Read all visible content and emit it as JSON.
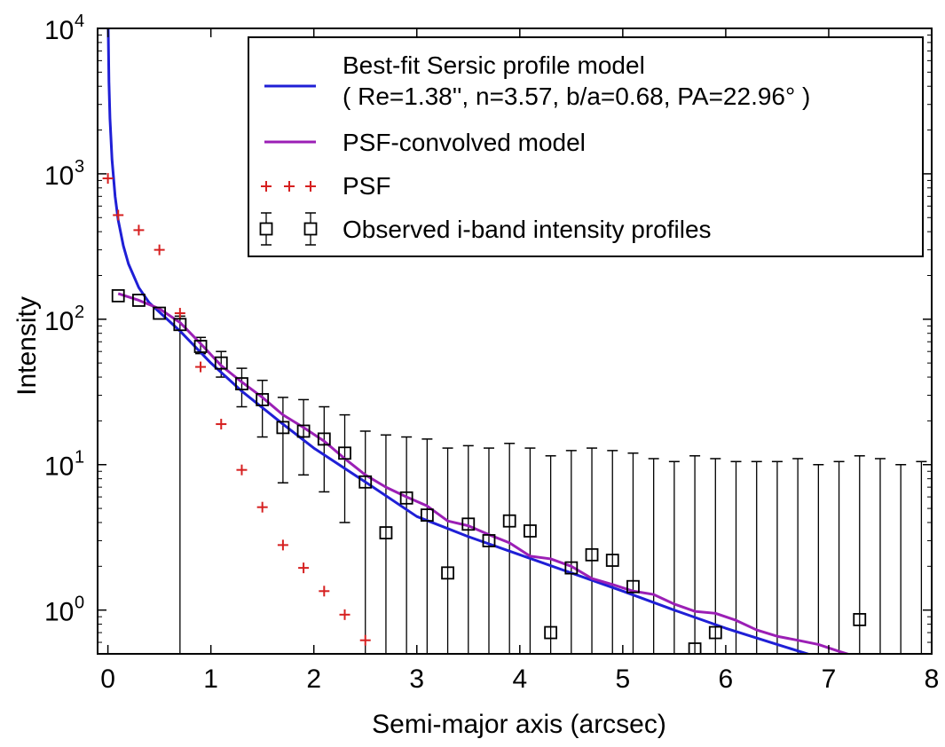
{
  "chart_data": {
    "type": "scatter",
    "title": "",
    "xlabel": "Semi-major axis (arcsec)",
    "ylabel": "Intensity",
    "xlim": [
      -0.1,
      8
    ],
    "ylim": [
      0.5,
      10000
    ],
    "yscale": "log",
    "grid": false,
    "legend_position": "top-right",
    "x_ticks": [
      {
        "value": 0,
        "label": "0"
      },
      {
        "value": 1,
        "label": "1"
      },
      {
        "value": 2,
        "label": "2"
      },
      {
        "value": 3,
        "label": "3"
      },
      {
        "value": 4,
        "label": "4"
      },
      {
        "value": 5,
        "label": "5"
      },
      {
        "value": 6,
        "label": "6"
      },
      {
        "value": 7,
        "label": "7"
      },
      {
        "value": 8,
        "label": "8"
      }
    ],
    "y_ticks": [
      {
        "value": 1,
        "base": "10",
        "exp": "0"
      },
      {
        "value": 10,
        "base": "10",
        "exp": "1"
      },
      {
        "value": 100,
        "base": "10",
        "exp": "2"
      },
      {
        "value": 1000,
        "base": "10",
        "exp": "3"
      },
      {
        "value": 10000,
        "base": "10",
        "exp": "4"
      }
    ],
    "series": [
      {
        "name": "Best-fit Sersic profile model",
        "params_text": "( Re=1.38'', n=3.57, b/a=0.68, PA=22.96° )",
        "kind": "line",
        "color": "#1f1fd6",
        "x": [
          0.003,
          0.01,
          0.02,
          0.04,
          0.07,
          0.1,
          0.15,
          0.2,
          0.3,
          0.4,
          0.5,
          0.7,
          1.0,
          1.3,
          1.7,
          2.0,
          2.5,
          3.0,
          3.5,
          4.0,
          4.5,
          5.0,
          5.5,
          6.0,
          6.5,
          7.0
        ],
        "y": [
          10000,
          4300,
          2400,
          1250,
          700,
          480,
          320,
          240,
          165,
          130,
          112,
          83,
          50,
          32,
          19,
          13,
          7.6,
          4.4,
          3.2,
          2.4,
          1.8,
          1.35,
          1.0,
          0.75,
          0.58,
          0.45
        ]
      },
      {
        "name": "PSF-convolved model",
        "kind": "line",
        "color": "#9b1fb5",
        "x": [
          0.1,
          0.3,
          0.5,
          0.7,
          0.9,
          1.1,
          1.3,
          1.5,
          1.7,
          1.9,
          2.1,
          2.3,
          2.5,
          2.7,
          2.9,
          3.1,
          3.3,
          3.5,
          3.7,
          3.9,
          4.1,
          4.3,
          4.5,
          4.7,
          4.9,
          5.1,
          5.3,
          5.5,
          5.7,
          5.9,
          6.1,
          6.3,
          6.5,
          6.7,
          6.9,
          7.1,
          7.3
        ],
        "y": [
          150,
          135,
          118,
          95,
          68,
          48,
          37,
          29,
          22,
          18,
          14.5,
          11,
          8.5,
          7,
          6,
          5.2,
          4.1,
          3.8,
          3.3,
          2.9,
          2.35,
          2.25,
          2.0,
          1.65,
          1.5,
          1.35,
          1.28,
          1.1,
          0.98,
          0.95,
          0.85,
          0.73,
          0.66,
          0.62,
          0.58,
          0.52,
          0.47
        ]
      },
      {
        "name": "PSF",
        "kind": "marker-plus",
        "color": "#d62020",
        "x": [
          0.0,
          0.1,
          0.3,
          0.5,
          0.7,
          0.9,
          1.1,
          1.3,
          1.5,
          1.7,
          1.9,
          2.1,
          2.3,
          2.5
        ],
        "y": [
          930,
          520,
          410,
          300,
          110,
          47,
          19,
          9.2,
          5.1,
          2.8,
          1.95,
          1.35,
          0.93,
          0.62
        ]
      },
      {
        "name": "Observed i-band intensity profiles",
        "kind": "marker-square-errorbar",
        "color": "#000000",
        "x": [
          0.1,
          0.3,
          0.5,
          0.7,
          0.9,
          1.1,
          1.3,
          1.5,
          1.7,
          1.9,
          2.1,
          2.3,
          2.5,
          2.7,
          2.9,
          3.1,
          3.3,
          3.5,
          3.7,
          3.9,
          4.1,
          4.3,
          4.5,
          4.7,
          4.9,
          5.1,
          5.3,
          5.5,
          5.7,
          5.9,
          6.1,
          6.3,
          6.5,
          6.7,
          6.9,
          7.1,
          7.3,
          7.5,
          7.7,
          7.9
        ],
        "y": [
          145,
          135,
          110,
          92,
          65,
          50,
          36,
          28,
          18,
          17,
          15,
          12,
          7.6,
          3.4,
          5.9,
          4.5,
          1.8,
          3.9,
          3.0,
          4.1,
          3.5,
          0.7,
          1.95,
          2.4,
          2.2,
          1.45,
          null,
          null,
          0.54,
          0.7,
          null,
          null,
          null,
          null,
          null,
          null,
          0.86,
          null,
          null,
          null
        ],
        "y_upper": [
          null,
          null,
          null,
          105,
          75,
          60,
          46,
          38,
          29,
          28,
          25,
          22,
          17,
          16,
          15.5,
          15,
          13,
          13.5,
          13,
          14,
          13,
          11.5,
          12.5,
          13,
          12.5,
          12,
          11,
          10.5,
          11.5,
          11,
          10.5,
          10.5,
          10.5,
          11,
          10,
          10.5,
          11.5,
          11,
          10,
          10.5
        ],
        "y_lower": [
          null,
          null,
          null,
          null,
          58,
          40,
          25,
          15.5,
          7.5,
          8.5,
          6.5,
          4.0,
          null,
          null,
          null,
          null,
          null,
          null,
          null,
          null,
          null,
          null,
          null,
          null,
          null,
          null,
          null,
          null,
          null,
          null,
          null,
          null,
          null,
          null,
          null,
          null,
          null,
          null,
          null,
          null
        ]
      }
    ]
  }
}
